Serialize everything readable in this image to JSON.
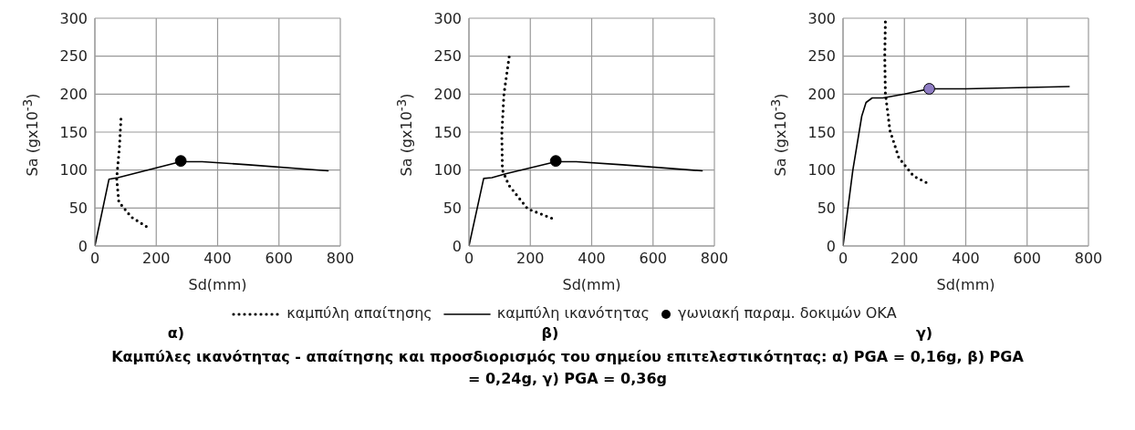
{
  "chart_data": [
    {
      "type": "line",
      "subtitle": "α)",
      "xlabel": "Sd(mm)",
      "ylabel": "Sa (gx10$^{-3}$)",
      "xlim": [
        0,
        800
      ],
      "xticks": [
        0,
        200,
        400,
        600,
        800
      ],
      "ylim": [
        0,
        300
      ],
      "yticks": [
        0,
        50,
        100,
        150,
        200,
        250,
        300
      ],
      "grid": true,
      "series": [
        {
          "line_style": "dotted",
          "color": "#000000",
          "x": [
            85,
            80,
            71,
            78,
            119,
            170
          ],
          "values": [
            167,
            130,
            89,
            58,
            38,
            25
          ]
        },
        {
          "line_style": "solid",
          "color": "#000000",
          "x": [
            0,
            46,
            75,
            279,
            350,
            500,
            760
          ],
          "values": [
            0,
            88,
            90,
            111,
            111,
            107,
            99
          ]
        },
        {
          "type": "scatter",
          "marker": "circle",
          "color": "#000000",
          "x": [
            280
          ],
          "values": [
            112
          ]
        }
      ]
    },
    {
      "type": "line",
      "subtitle": "β)",
      "xlabel": "Sd(mm)",
      "ylabel": "Sa (gx10$^{-3}$)",
      "xlim": [
        0,
        800
      ],
      "xticks": [
        0,
        200,
        400,
        600,
        800
      ],
      "ylim": [
        0,
        300
      ],
      "yticks": [
        0,
        50,
        100,
        150,
        200,
        250,
        300
      ],
      "grid": true,
      "legend": "bottom",
      "annotations": [
        "Καμπύλες ικανότητας  - απαίτησης και προσδιορισμός του σημείου επιτελεστικότητας: α) PGA = 0,16g, β) PGA = 0,24g, γ) PGA = 0,36g"
      ],
      "series": [
        {
          "name": "καμπύλη απαίτησης",
          "line_style": "dotted",
          "color": "#000000",
          "x": [
            131,
            114,
            107,
            109,
            130,
            191,
            273
          ],
          "values": [
            249,
            200,
            147,
            100,
            80,
            49,
            36
          ]
        },
        {
          "name": "καμπύλη ικανότητας",
          "line_style": "solid",
          "color": "#000000",
          "x": [
            0,
            48,
            75,
            120,
            283,
            350,
            500,
            760
          ],
          "values": [
            0,
            89,
            90,
            95,
            111,
            111,
            107,
            99
          ]
        },
        {
          "type": "scatter",
          "name": "γωνιακή παραμ. δοκιμών ΟΚΑ",
          "marker": "circle",
          "color": "#000000",
          "x": [
            283
          ],
          "values": [
            112
          ]
        }
      ]
    },
    {
      "type": "line",
      "subtitle": "γ)",
      "xlabel": "Sd(mm)",
      "ylabel": "Sa (gx10$^{-3}$)",
      "xlim": [
        0,
        800
      ],
      "xticks": [
        0,
        200,
        400,
        600,
        800
      ],
      "ylim": [
        0,
        300
      ],
      "yticks": [
        0,
        50,
        100,
        150,
        200,
        250,
        300
      ],
      "grid": true,
      "series": [
        {
          "line_style": "dotted",
          "color": "#000000",
          "x": [
            138,
            136,
            138,
            153,
            182,
            230,
            274
          ],
          "values": [
            295,
            250,
            201,
            152,
            116,
            92,
            83
          ]
        },
        {
          "line_style": "solid",
          "color": "#000000",
          "x": [
            0,
            32,
            61,
            75,
            95,
            130,
            200,
            281,
            400,
            737
          ],
          "values": [
            0,
            100,
            171,
            189,
            195,
            195,
            200,
            207,
            207,
            210
          ]
        },
        {
          "type": "scatter",
          "marker": "circle",
          "color": "#8e7cc3",
          "x": [
            281
          ],
          "values": [
            207
          ]
        }
      ]
    }
  ]
}
